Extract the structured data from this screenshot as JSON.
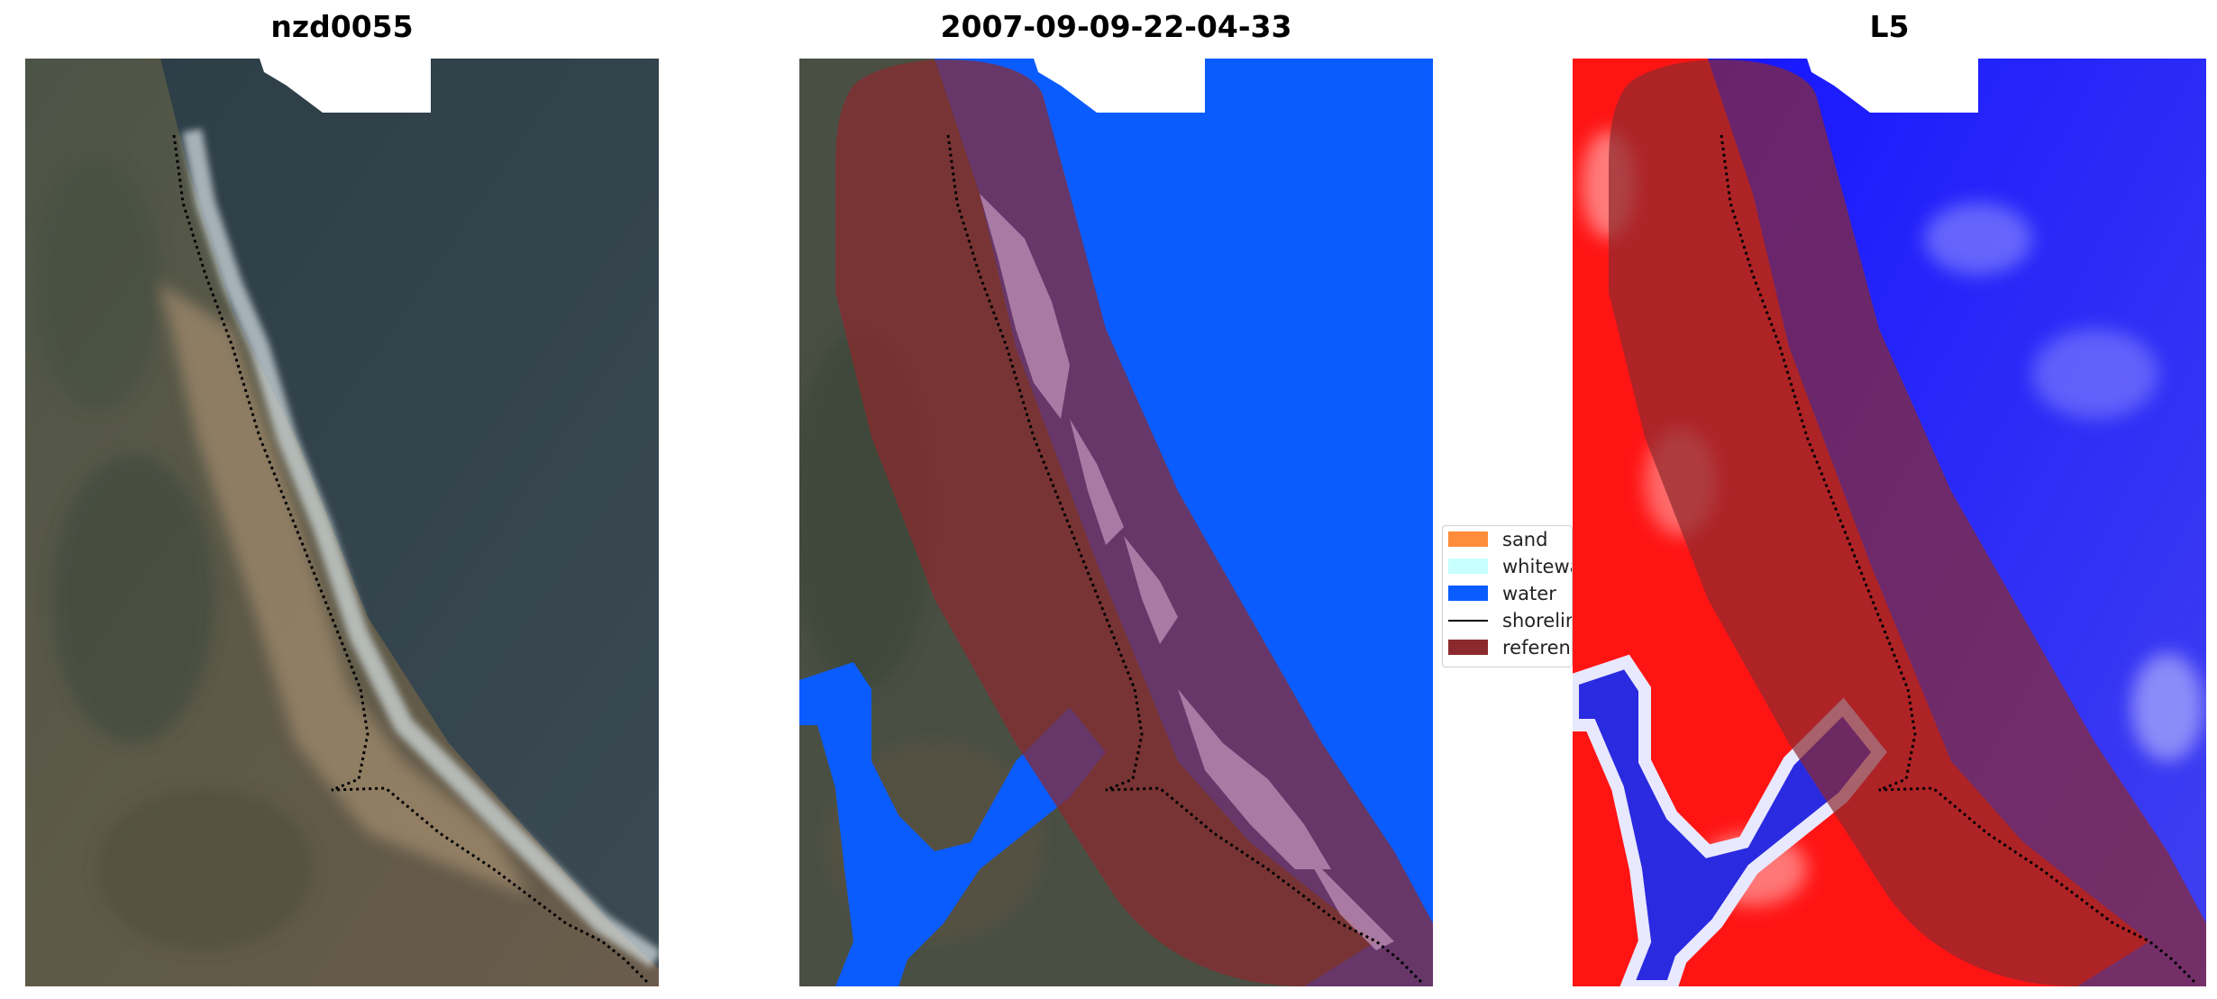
{
  "panels": [
    {
      "title": "nzd0055"
    },
    {
      "title": "2007-09-09-22-04-33"
    },
    {
      "title": "L5"
    }
  ],
  "legend": {
    "items": [
      {
        "label": "sand",
        "color": "#ff8c3a"
      },
      {
        "label": "whitewater",
        "color": "#c8ffff"
      },
      {
        "label": "water",
        "color": "#0a5cff"
      },
      {
        "label": "shoreline",
        "color": "#000000"
      },
      {
        "label": "reference shoreline buffer",
        "color": "#8b2a2e"
      }
    ]
  },
  "colors": {
    "land": "#5b5848",
    "ocean": "#2e3c45",
    "classified_water": "#0a5cff",
    "buffer": "#8b2a2e",
    "index_land": "#ff1010",
    "index_water": "#1a1aff"
  }
}
